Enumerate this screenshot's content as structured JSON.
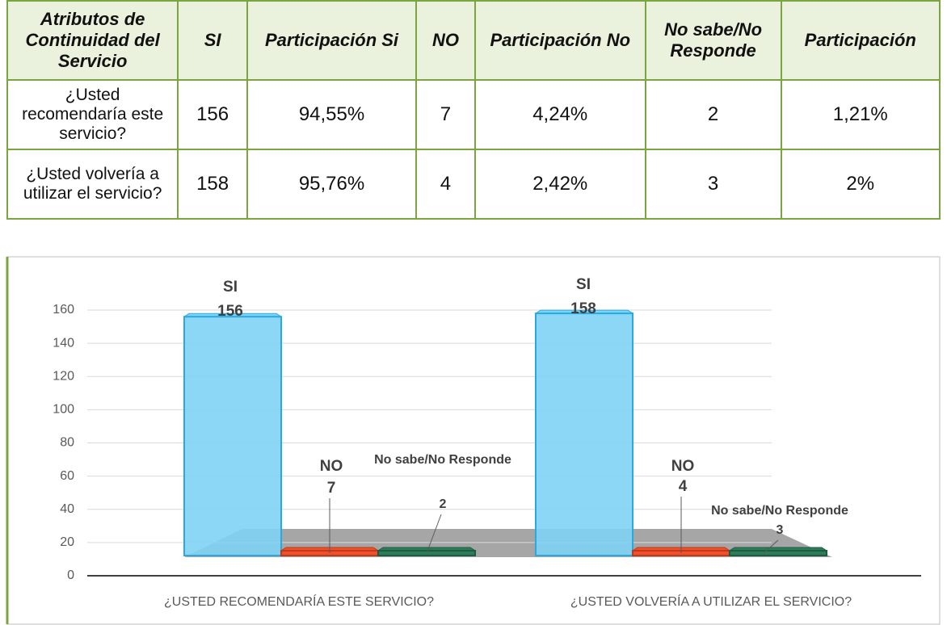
{
  "table": {
    "headers": [
      "Atributos de Continuidad del Servicio",
      "SI",
      "Participación Si",
      "NO",
      "Participación No",
      "No sabe/No Responde",
      "Participación"
    ],
    "rows": [
      [
        "¿Usted recomendaría este servicio?",
        156,
        "94,55%",
        7,
        "4,24%",
        2,
        "1,21%"
      ],
      [
        "¿Usted volvería a utilizar el servicio?",
        158,
        "95,76%",
        4,
        "2,42%",
        3,
        "2%"
      ]
    ]
  },
  "chart_data": {
    "type": "bar",
    "categories": [
      "¿USTED RECOMENDARÍA ESTE SERVICIO?",
      "¿USTED VOLVERÍA A UTILIZAR EL SERVICIO?"
    ],
    "series": [
      {
        "name": "SI",
        "color": "#7fd3f5",
        "values": [
          156,
          158
        ]
      },
      {
        "name": "NO",
        "color": "#f0502a",
        "values": [
          7,
          4
        ]
      },
      {
        "name": "No sabe/No Responde",
        "color": "#2e7d5a",
        "values": [
          2,
          3
        ]
      }
    ],
    "ylim": [
      0,
      160
    ],
    "yticks": [
      0,
      20,
      40,
      60,
      80,
      100,
      120,
      140,
      160
    ],
    "grid": true
  }
}
